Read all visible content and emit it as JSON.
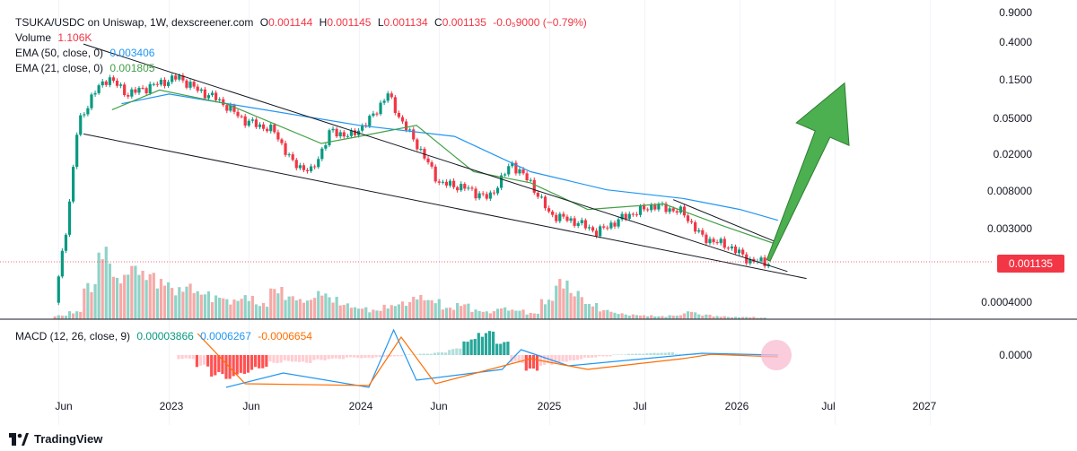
{
  "legend": {
    "symbol_line": "TSUKA/USDC on Uniswap, 1W, dexscreener.com",
    "open_label": "O",
    "open": "0.001144",
    "high_label": "H",
    "high": "0.001145",
    "low_label": "L",
    "low": "0.001134",
    "close_label": "C",
    "close": "0.001135",
    "change": "-0.0₅9000 (−0.79%)",
    "volume_label": "Volume",
    "volume": "1.106K",
    "ema50_label": "EMA (50, close, 0)",
    "ema50": "0.003406",
    "ema21_label": "EMA (21, close, 0)",
    "ema21": "0.001805",
    "macd_label": "MACD (12, 26, close, 9)",
    "macd_hist": "0.00003866",
    "macd_line": "0.0006267",
    "macd_signal": "-0.0006654"
  },
  "price_axis": {
    "ticks": [
      "0.9000",
      "0.4000",
      "0.1500",
      "0.05000",
      "0.02000",
      "0.008000",
      "0.003000",
      "0.0004000"
    ]
  },
  "current_price_tag": "0.001135",
  "macd_axis": {
    "tick": "0.0000"
  },
  "time_axis": {
    "ticks": [
      "Jun",
      "2023",
      "Jun",
      "2024",
      "Jun",
      "2025",
      "Jul",
      "2026",
      "Jul",
      "2027"
    ]
  },
  "footer": {
    "brand": "TradingView"
  },
  "colors": {
    "up": "#089981",
    "down": "#f23645",
    "ema50": "#2196f3",
    "ema21": "#43a047",
    "arrow": "#4caf50"
  },
  "chart_data": {
    "type": "candlestick",
    "title": "TSUKA/USDC on Uniswap, 1W, dexscreener.com",
    "y_scale": "log",
    "ylim": [
      0.0003,
      0.9
    ],
    "x_range_years": [
      2022.3,
      2027.3
    ],
    "time_ticks": [
      {
        "label": "Jun",
        "t": 2022.42
      },
      {
        "label": "2023",
        "t": 2023.0
      },
      {
        "label": "Jun",
        "t": 2023.42
      },
      {
        "label": "2024",
        "t": 2024.0
      },
      {
        "label": "Jun",
        "t": 2024.42
      },
      {
        "label": "2025",
        "t": 2025.0
      },
      {
        "label": "Jul",
        "t": 2025.5
      },
      {
        "label": "2026",
        "t": 2026.0
      },
      {
        "label": "Jul",
        "t": 2026.5
      },
      {
        "label": "2027",
        "t": 2027.0
      }
    ],
    "price_path": [
      [
        2022.4,
        0.0004
      ],
      [
        2022.47,
        0.004
      ],
      [
        2022.52,
        0.04
      ],
      [
        2022.6,
        0.09
      ],
      [
        2022.68,
        0.14
      ],
      [
        2022.78,
        0.09
      ],
      [
        2022.9,
        0.11
      ],
      [
        2023.05,
        0.14
      ],
      [
        2023.15,
        0.1
      ],
      [
        2023.25,
        0.08
      ],
      [
        2023.4,
        0.045
      ],
      [
        2023.55,
        0.035
      ],
      [
        2023.65,
        0.015
      ],
      [
        2023.75,
        0.012
      ],
      [
        2023.85,
        0.035
      ],
      [
        2023.95,
        0.03
      ],
      [
        2024.05,
        0.045
      ],
      [
        2024.15,
        0.09
      ],
      [
        2024.22,
        0.045
      ],
      [
        2024.3,
        0.025
      ],
      [
        2024.42,
        0.009
      ],
      [
        2024.55,
        0.008
      ],
      [
        2024.68,
        0.006
      ],
      [
        2024.8,
        0.015
      ],
      [
        2024.9,
        0.009
      ],
      [
        2025.0,
        0.004
      ],
      [
        2025.15,
        0.0032
      ],
      [
        2025.25,
        0.0025
      ],
      [
        2025.4,
        0.0038
      ],
      [
        2025.55,
        0.005
      ],
      [
        2025.7,
        0.0042
      ],
      [
        2025.8,
        0.0022
      ],
      [
        2025.95,
        0.0017
      ],
      [
        2026.05,
        0.0012
      ],
      [
        2026.15,
        0.001135
      ]
    ],
    "ema50_path": [
      [
        2022.75,
        0.07
      ],
      [
        2023.0,
        0.09
      ],
      [
        2023.5,
        0.06
      ],
      [
        2024.0,
        0.04
      ],
      [
        2024.5,
        0.03
      ],
      [
        2024.9,
        0.012
      ],
      [
        2025.3,
        0.0075
      ],
      [
        2025.7,
        0.006
      ],
      [
        2026.0,
        0.0045
      ],
      [
        2026.2,
        0.0034
      ]
    ],
    "ema21_path": [
      [
        2022.7,
        0.06
      ],
      [
        2022.95,
        0.1
      ],
      [
        2023.3,
        0.07
      ],
      [
        2023.8,
        0.025
      ],
      [
        2024.0,
        0.03
      ],
      [
        2024.3,
        0.04
      ],
      [
        2024.6,
        0.012
      ],
      [
        2024.9,
        0.009
      ],
      [
        2025.2,
        0.0045
      ],
      [
        2025.6,
        0.0052
      ],
      [
        2025.9,
        0.003
      ],
      [
        2026.2,
        0.0018
      ]
    ],
    "channel_upper": [
      [
        2022.55,
        0.33
      ],
      [
        2026.25,
        0.0009
      ]
    ],
    "channel_lower": [
      [
        2022.55,
        0.032
      ],
      [
        2026.35,
        0.00075
      ]
    ],
    "wedge_upper": [
      [
        2025.65,
        0.0058
      ],
      [
        2026.2,
        0.0019
      ]
    ],
    "projection_arrow": [
      [
        2026.15,
        0.0012
      ],
      [
        2026.55,
        0.12
      ]
    ],
    "volume": {
      "label": "Volume",
      "note": "relative bar heights, 0-1",
      "levels": [
        0.05,
        0.1,
        0.45,
        0.9,
        0.55,
        0.7,
        0.6,
        0.5,
        0.4,
        0.45,
        0.35,
        0.3,
        0.25,
        0.3,
        0.2,
        0.4,
        0.3,
        0.25,
        0.35,
        0.28,
        0.2,
        0.15,
        0.12,
        0.18,
        0.22,
        0.3,
        0.25,
        0.15,
        0.2,
        0.12,
        0.1,
        0.15,
        0.12,
        0.08,
        0.25,
        0.5,
        0.35,
        0.2,
        0.12,
        0.08,
        0.06,
        0.05,
        0.04,
        0.05,
        0.1,
        0.06,
        0.04,
        0.03,
        0.03,
        0.02
      ]
    },
    "macd": {
      "label": "MACD (12, 26, close, 9)",
      "histogram": [
        -0.15,
        -0.45,
        -0.8,
        -0.9,
        -0.7,
        -0.5,
        -0.3,
        -0.25,
        -0.3,
        -0.2,
        -0.15,
        -0.1,
        -0.12,
        -0.08,
        -0.05,
        0.02,
        0.05,
        0.1,
        0.25,
        0.6,
        0.9,
        0.5,
        -0.3,
        -0.6,
        -0.4,
        -0.3,
        -0.2,
        -0.1,
        -0.05,
        0.02,
        0.05,
        0.08,
        0.1,
        0.05,
        0.02,
        0.03,
        0.04,
        0.03,
        0.02,
        0.01
      ],
      "macd_line": [
        [
          2023.3,
          -0.9
        ],
        [
          2023.6,
          -0.5
        ],
        [
          2024.05,
          -0.9
        ],
        [
          2024.18,
          0.7
        ],
        [
          2024.3,
          -0.7
        ],
        [
          2024.75,
          -0.4
        ],
        [
          2024.85,
          0.15
        ],
        [
          2025.1,
          -0.3
        ],
        [
          2025.6,
          -0.05
        ],
        [
          2025.8,
          0.05
        ],
        [
          2026.2,
          0.0
        ]
      ],
      "signal_line": [
        [
          2023.15,
          0.6
        ],
        [
          2023.4,
          -0.8
        ],
        [
          2024.05,
          -0.85
        ],
        [
          2024.22,
          0.5
        ],
        [
          2024.4,
          -0.8
        ],
        [
          2024.9,
          -0.1
        ],
        [
          2025.2,
          -0.4
        ],
        [
          2025.7,
          -0.1
        ],
        [
          2025.85,
          0.02
        ],
        [
          2026.2,
          -0.05
        ]
      ]
    }
  }
}
